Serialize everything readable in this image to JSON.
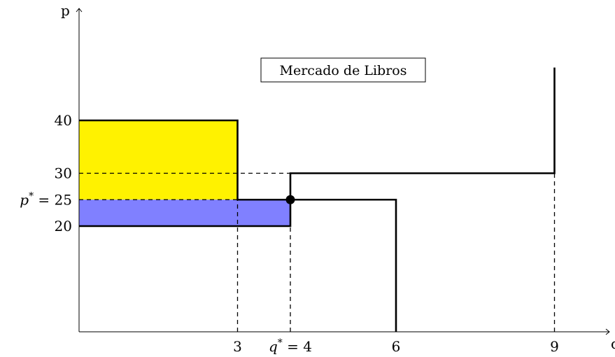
{
  "chart_data": {
    "type": "line",
    "title": "Mercado de Libros",
    "xlabel": "q",
    "ylabel": "p",
    "xlim": [
      0,
      10
    ],
    "ylim": [
      0,
      60
    ],
    "x_ticks": [
      {
        "value": 3,
        "label": "3"
      },
      {
        "value": 4,
        "label": "q* = 4"
      },
      {
        "value": 6,
        "label": "6"
      },
      {
        "value": 9,
        "label": "9"
      }
    ],
    "y_ticks": [
      {
        "value": 20,
        "label": "20"
      },
      {
        "value": 25,
        "label": "p* = 25"
      },
      {
        "value": 30,
        "label": "30"
      },
      {
        "value": 40,
        "label": "40"
      }
    ],
    "series": [
      {
        "role": "demand",
        "color": "#000000",
        "points": [
          [
            0,
            40
          ],
          [
            3,
            40
          ],
          [
            3,
            25
          ],
          [
            6,
            25
          ],
          [
            6,
            0
          ]
        ]
      },
      {
        "role": "supply",
        "color": "#000000",
        "points": [
          [
            0,
            20
          ],
          [
            4,
            20
          ],
          [
            4,
            30
          ],
          [
            9,
            30
          ],
          [
            9,
            50
          ]
        ]
      }
    ],
    "regions": [
      {
        "role": "consumer-surplus",
        "color": "#fff200",
        "x": [
          0,
          3
        ],
        "y": [
          25,
          40
        ]
      },
      {
        "role": "producer-surplus",
        "color": "#8080ff",
        "x": [
          0,
          4
        ],
        "y": [
          20,
          25
        ]
      }
    ],
    "equilibrium": {
      "q": 4,
      "p": 25
    },
    "guide_lines": [
      {
        "from": [
          0,
          30
        ],
        "to": [
          4,
          30
        ]
      },
      {
        "from": [
          0,
          25
        ],
        "to": [
          4,
          25
        ]
      },
      {
        "from": [
          3,
          0
        ],
        "to": [
          3,
          25
        ]
      },
      {
        "from": [
          4,
          0
        ],
        "to": [
          4,
          20
        ]
      },
      {
        "from": [
          9,
          0
        ],
        "to": [
          9,
          30
        ]
      }
    ],
    "grid": false,
    "legend": "none"
  }
}
